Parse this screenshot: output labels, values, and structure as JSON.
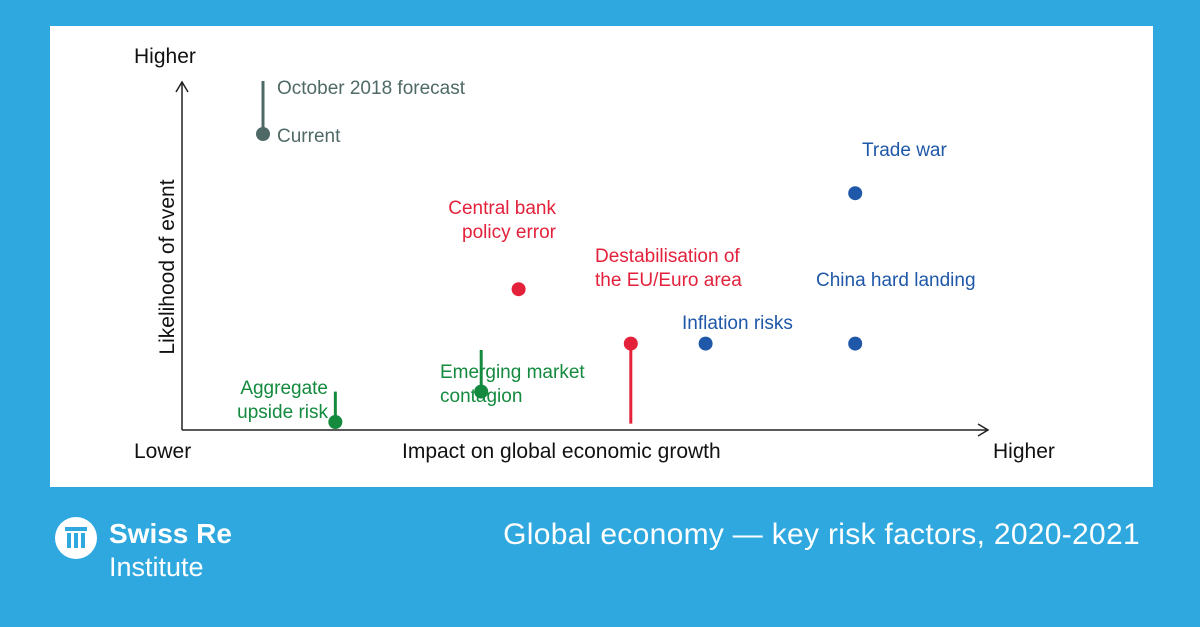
{
  "chart_data": {
    "type": "scatter",
    "title": "Global economy — key risk factors, 2020-2021",
    "xlabel": "Impact on global economic growth",
    "ylabel": "Likelihood of event",
    "x_low_label": "Lower",
    "x_high_label": "Higher",
    "y_high_label": "Higher",
    "xlim": [
      0,
      100
    ],
    "ylim": [
      0,
      100
    ],
    "grid": false,
    "legend": {
      "placement": "top-left",
      "forecast_label": "October 2018 forecast",
      "current_label": "Current",
      "color": "#4f6a66"
    },
    "points": [
      {
        "label": "Trade war",
        "x": 90,
        "y": 74,
        "forecast_y": null,
        "color": "#1f58a8"
      },
      {
        "label": "Central bank policy error",
        "x": 45,
        "y": 44,
        "forecast_y": null,
        "color": "#e3213b"
      },
      {
        "label": "Destabilisation of the EU/Euro area",
        "x": 60,
        "y": 27,
        "forecast_y": 2,
        "color": "#e3213b"
      },
      {
        "label": "Inflation risks",
        "x": 70,
        "y": 27,
        "forecast_y": null,
        "color": "#1f58a8"
      },
      {
        "label": "China hard landing",
        "x": 90,
        "y": 27,
        "forecast_y": null,
        "color": "#1f58a8"
      },
      {
        "label": "Emerging market contagion",
        "x": 40,
        "y": 12,
        "forecast_y": 25,
        "color": "#138a3e"
      },
      {
        "label": "Aggregate upside risk",
        "x": 20.5,
        "y": 2.5,
        "forecast_y": 12,
        "color": "#138a3e"
      }
    ]
  },
  "brand": {
    "name_line1": "Swiss Re",
    "name_line2": "Institute"
  }
}
